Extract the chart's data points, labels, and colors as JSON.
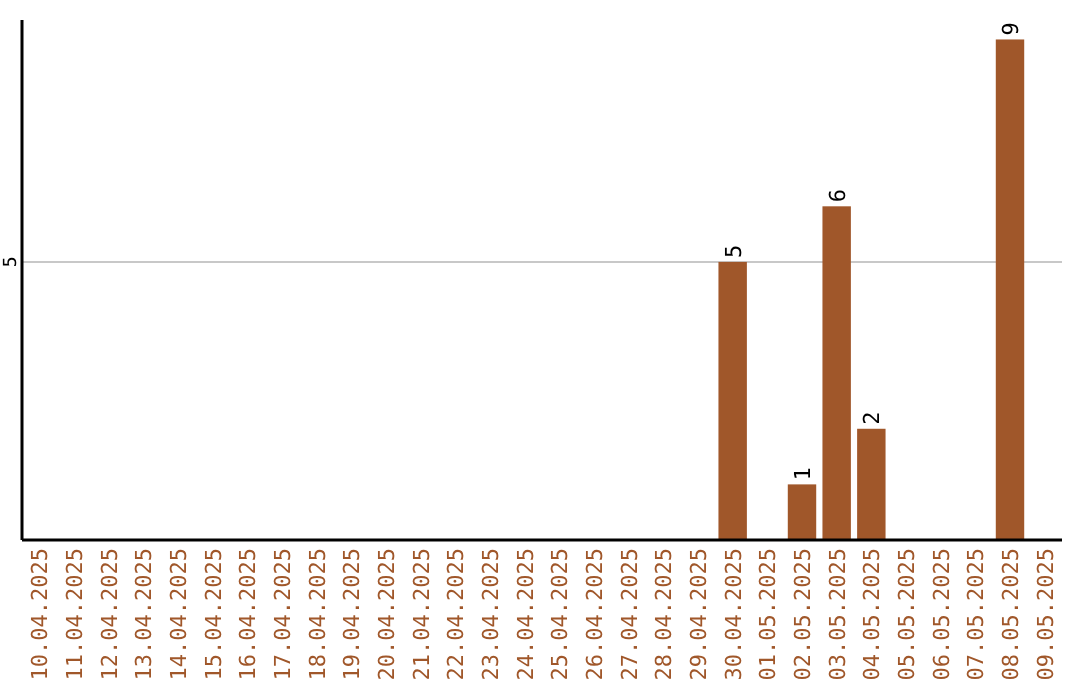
{
  "chart_data": {
    "type": "bar",
    "categories": [
      "10.04.2025",
      "11.04.2025",
      "12.04.2025",
      "13.04.2025",
      "14.04.2025",
      "15.04.2025",
      "16.04.2025",
      "17.04.2025",
      "18.04.2025",
      "19.04.2025",
      "20.04.2025",
      "21.04.2025",
      "22.04.2025",
      "23.04.2025",
      "24.04.2025",
      "25.04.2025",
      "26.04.2025",
      "27.04.2025",
      "28.04.2025",
      "29.04.2025",
      "30.04.2025",
      "01.05.2025",
      "02.05.2025",
      "03.05.2025",
      "04.05.2025",
      "05.05.2025",
      "06.05.2025",
      "07.05.2025",
      "08.05.2025",
      "09.05.2025"
    ],
    "values": [
      null,
      null,
      null,
      null,
      null,
      null,
      null,
      null,
      null,
      null,
      null,
      null,
      null,
      null,
      null,
      null,
      null,
      null,
      null,
      null,
      5,
      null,
      1,
      6,
      2,
      null,
      null,
      null,
      9,
      null
    ],
    "color": "#a0572a",
    "ylim": [
      0,
      9.35
    ],
    "yticks": [
      5
    ],
    "grid": "y",
    "data_labels": true
  }
}
